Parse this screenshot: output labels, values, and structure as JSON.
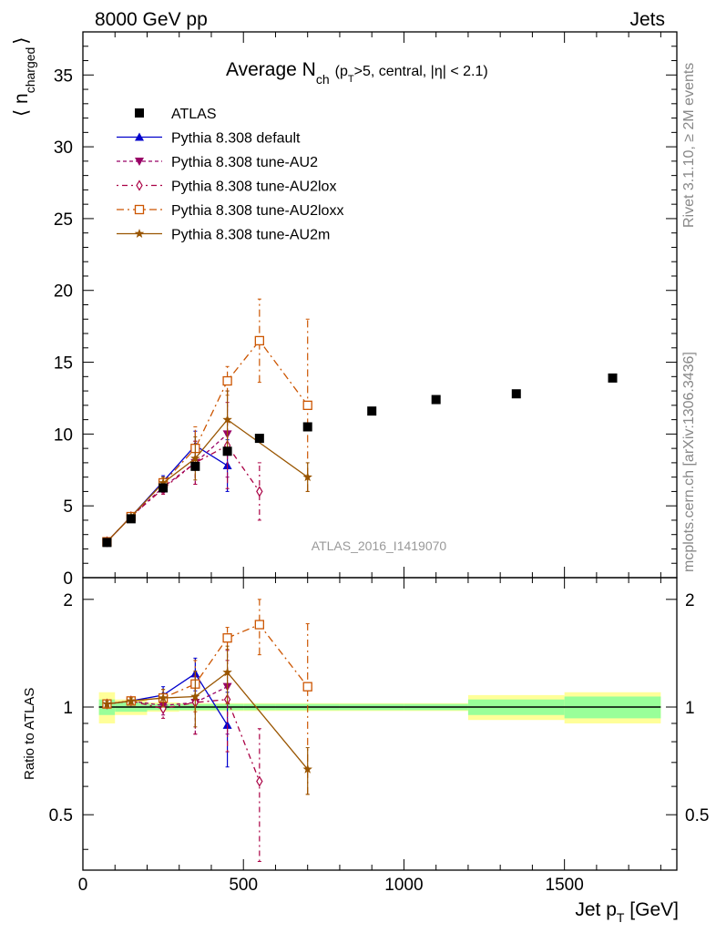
{
  "header": {
    "left": "8000 GeV pp",
    "right": "Jets"
  },
  "plot_title": {
    "main": "Average N",
    "sub": "ch",
    "rest_a": "(p",
    "rest_sub": "T",
    "rest_b": ">5, central, |η| < 2.1)"
  },
  "side_texts": {
    "rivet": "Rivet 3.1.10, ≥ 2M events",
    "mcplots": "mcplots.cern.ch [arXiv:1306.3436]"
  },
  "watermark": "ATLAS_2016_I1419070",
  "axes": {
    "ylabel_main_pre": "⟨ n",
    "ylabel_main_sub": "charged",
    "ylabel_main_post": "⟩",
    "ylabel_ratio": "Ratio to ATLAS",
    "xlabel_pre": "Jet p",
    "xlabel_sub": "T",
    "xlabel_post": " [GeV]"
  },
  "chart_data": {
    "type": "scatter",
    "title": "Average N_ch (p_T>5, central, |η| < 2.1)",
    "xlabel": "Jet p_T [GeV]",
    "ylabel": "⟨ n_charged ⟩",
    "xlim": [
      0,
      1850
    ],
    "ylim": [
      0,
      38
    ],
    "xticks": [
      0,
      500,
      1000,
      1500
    ],
    "yticks": [
      0,
      5,
      10,
      15,
      20,
      25,
      30,
      35
    ],
    "ratio_ylim": [
      0.35,
      2.3
    ],
    "ratio_yticks": [
      0.5,
      1,
      2
    ],
    "ratio_ylabel": "Ratio to ATLAS",
    "grid": false,
    "legend_position": "top-left",
    "data": {
      "name": "ATLAS",
      "x": [
        75,
        150,
        250,
        350,
        450,
        550,
        700,
        900,
        1100,
        1350,
        1650
      ],
      "y": [
        2.45,
        4.1,
        6.25,
        7.75,
        8.8,
        9.7,
        10.5,
        11.6,
        12.4,
        12.8,
        13.9
      ],
      "bins": [
        [
          50,
          100
        ],
        [
          100,
          200
        ],
        [
          200,
          300
        ],
        [
          300,
          400
        ],
        [
          400,
          500
        ],
        [
          500,
          600
        ],
        [
          600,
          800
        ],
        [
          800,
          1000
        ],
        [
          1000,
          1200
        ],
        [
          1200,
          1500
        ],
        [
          1500,
          1800
        ]
      ],
      "band_green": [
        0.05,
        0.03,
        0.02,
        0.02,
        0.02,
        0.02,
        0.02,
        0.02,
        0.02,
        0.05,
        0.07
      ],
      "band_yellow": [
        0.1,
        0.05,
        0.03,
        0.025,
        0.025,
        0.025,
        0.025,
        0.025,
        0.025,
        0.08,
        0.1
      ]
    },
    "series": [
      {
        "name": "Pythia 8.308 default",
        "color": "#0000cc",
        "marker": "triangle-up",
        "dash": "",
        "x": [
          75,
          150,
          250,
          350,
          450
        ],
        "y": [
          2.5,
          4.25,
          6.7,
          9.2,
          7.8
        ],
        "yerr": [
          0.05,
          0.1,
          0.4,
          1.0,
          1.8
        ],
        "ratio": [
          1.02,
          1.04,
          1.08,
          1.24,
          0.89
        ],
        "ratio_err": [
          0.02,
          0.02,
          0.06,
          0.13,
          0.21
        ]
      },
      {
        "name": "Pythia 8.308 tune-AU2",
        "color": "#990066",
        "marker": "triangle-down",
        "dash": "4,3",
        "x": [
          75,
          150,
          250,
          350,
          450
        ],
        "y": [
          2.5,
          4.25,
          6.3,
          8.0,
          10.0
        ],
        "yerr": [
          0.05,
          0.1,
          0.4,
          1.5,
          3.0
        ],
        "ratio": [
          1.02,
          1.04,
          1.01,
          1.03,
          1.14
        ],
        "ratio_err": [
          0.02,
          0.02,
          0.06,
          0.19,
          0.3
        ]
      },
      {
        "name": "Pythia 8.308 tune-AU2lox",
        "color": "#aa0044",
        "marker": "diamond-open",
        "dash": "2,4,6,4",
        "x": [
          75,
          150,
          250,
          350,
          450,
          550
        ],
        "y": [
          2.5,
          4.25,
          6.2,
          8.0,
          9.2,
          6.0
        ],
        "yerr": [
          0.05,
          0.1,
          0.4,
          1.5,
          3.0,
          2.0
        ],
        "ratio": [
          1.02,
          1.04,
          0.99,
          1.03,
          1.05,
          0.62
        ],
        "ratio_err": [
          0.02,
          0.02,
          0.06,
          0.19,
          0.3,
          0.25
        ]
      },
      {
        "name": "Pythia 8.308 tune-AU2loxx",
        "color": "#cc5500",
        "marker": "square-open",
        "dash": "8,4,2,4",
        "x": [
          75,
          150,
          250,
          350,
          450,
          550,
          700
        ],
        "y": [
          2.5,
          4.25,
          6.6,
          9.0,
          13.7,
          16.5,
          12.0
        ],
        "yerr": [
          0.05,
          0.1,
          0.4,
          1.5,
          1.0,
          2.9,
          6.0
        ],
        "ratio": [
          1.02,
          1.04,
          1.06,
          1.16,
          1.56,
          1.7,
          1.14
        ],
        "ratio_err": [
          0.02,
          0.02,
          0.06,
          0.19,
          0.11,
          0.3,
          0.57
        ]
      },
      {
        "name": "Pythia 8.308 tune-AU2m",
        "color": "#995500",
        "marker": "star",
        "dash": "",
        "x": [
          75,
          150,
          250,
          350,
          450,
          700
        ],
        "y": [
          2.5,
          4.25,
          6.6,
          8.3,
          11.0,
          7.0
        ],
        "yerr": [
          0.05,
          0.1,
          0.4,
          1.5,
          2.0,
          1.0
        ],
        "ratio": [
          1.02,
          1.04,
          1.06,
          1.07,
          1.25,
          0.67
        ],
        "ratio_err": [
          0.02,
          0.02,
          0.06,
          0.19,
          0.23,
          0.1
        ]
      }
    ]
  }
}
